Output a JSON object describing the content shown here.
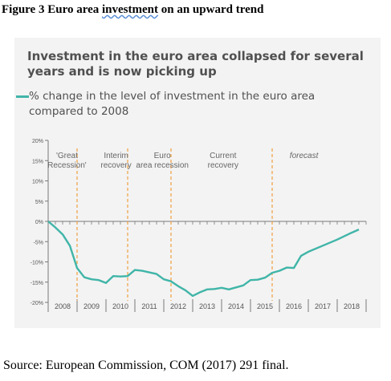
{
  "figure_title": "Figure 3 Euro area investment on an upward trend",
  "source": "Source: European Commission, COM (2017) 291 final.",
  "colors": {
    "series": "#40b5a8",
    "dashed": "#f0a040",
    "panel_bg": "#f3f3f3",
    "text": "#505050"
  },
  "chart_data": {
    "type": "line",
    "title": "Investment in the euro area collapsed for several years and is now picking up",
    "series": [
      {
        "name": "% change in the level of investment in the euro area compared to 2008",
        "points": [
          [
            2008.0,
            0
          ],
          [
            2008.25,
            -1.5
          ],
          [
            2008.5,
            -3.2
          ],
          [
            2008.75,
            -6
          ],
          [
            2009.0,
            -11.5
          ],
          [
            2009.25,
            -13.8
          ],
          [
            2009.5,
            -14.3
          ],
          [
            2009.75,
            -14.5
          ],
          [
            2010.0,
            -15.2
          ],
          [
            2010.25,
            -13.5
          ],
          [
            2010.5,
            -13.6
          ],
          [
            2010.75,
            -13.5
          ],
          [
            2011.0,
            -12
          ],
          [
            2011.25,
            -12.2
          ],
          [
            2011.5,
            -12.6
          ],
          [
            2011.75,
            -13
          ],
          [
            2012.0,
            -14.3
          ],
          [
            2012.25,
            -14.8
          ],
          [
            2012.5,
            -16
          ],
          [
            2012.75,
            -17
          ],
          [
            2013.0,
            -18.4
          ],
          [
            2013.25,
            -17.5
          ],
          [
            2013.5,
            -16.8
          ],
          [
            2013.75,
            -16.7
          ],
          [
            2014.0,
            -16.4
          ],
          [
            2014.25,
            -16.8
          ],
          [
            2014.5,
            -16.3
          ],
          [
            2014.75,
            -15.8
          ],
          [
            2015.0,
            -14.5
          ],
          [
            2015.25,
            -14.4
          ],
          [
            2015.5,
            -13.9
          ],
          [
            2015.75,
            -12.7
          ],
          [
            2016.0,
            -12.2
          ],
          [
            2016.25,
            -11.4
          ],
          [
            2016.5,
            -11.5
          ],
          [
            2016.75,
            -8.5
          ],
          [
            2017.0,
            -7.5
          ],
          [
            2017.5,
            -6
          ],
          [
            2018.0,
            -4.5
          ],
          [
            2018.5,
            -2.8
          ],
          [
            2018.75,
            -2
          ]
        ]
      }
    ],
    "x_range": [
      2008,
      2019
    ],
    "x_ticks": [
      "2008",
      "2009",
      "2010",
      "2011",
      "2012",
      "2013",
      "2014",
      "2015",
      "2016",
      "2017",
      "2018"
    ],
    "ylim": [
      -20,
      20
    ],
    "y_ticks": [
      "20%",
      "15%",
      "10%",
      "5%",
      "0%",
      "-5%",
      "-10%",
      "-15%",
      "-20%"
    ],
    "phases": [
      {
        "label": "'Great Recession'",
        "x": 2008.65
      },
      {
        "label": "Interim recovery",
        "x": 2010.35
      },
      {
        "label": "Euro area recession",
        "x": 2011.95
      },
      {
        "label": "Current recovery",
        "x": 2014.05
      },
      {
        "label": "forecast",
        "x": 2016.85,
        "italic": true
      }
    ],
    "dividers": [
      2009.0,
      2010.75,
      2012.25,
      2015.75
    ],
    "grid": false
  }
}
